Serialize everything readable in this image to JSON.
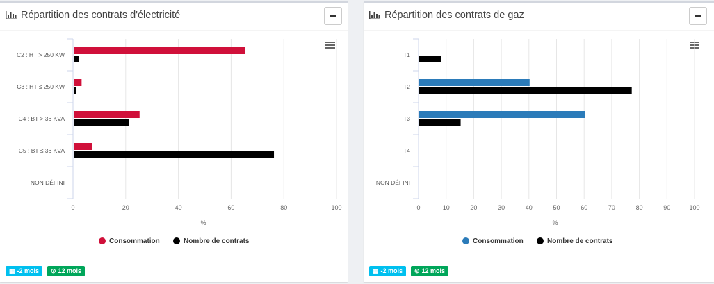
{
  "panels": [
    {
      "title": "Répartition des contrats d'électricité",
      "badge_period": "-2 mois",
      "badge_duration": "12 mois",
      "title_icon": "bar-chart-icon",
      "menu_icon": "hamburger-icon",
      "collapse_icon": "minus-icon"
    },
    {
      "title": "Répartition des contrats de gaz",
      "badge_period": "-2 mois",
      "badge_duration": "12 mois",
      "title_icon": "bar-chart-icon",
      "menu_icon": "hamburger-icon",
      "collapse_icon": "minus-icon"
    }
  ],
  "chart_data": [
    {
      "type": "bar",
      "orientation": "horizontal",
      "categories": [
        "C2 : HT > 250 KW",
        "C3 : HT ≤ 250 KW",
        "C4 : BT > 36 KVA",
        "C5 : BT ≤ 36 KVA",
        "NON DÉFINI"
      ],
      "series": [
        {
          "name": "Consommation",
          "color": "#d0103a",
          "values": [
            65,
            3,
            25,
            7,
            0
          ]
        },
        {
          "name": "Nombre de contrats",
          "color": "#000000",
          "values": [
            2,
            1,
            21,
            76,
            0
          ]
        }
      ],
      "xlabel": "%",
      "xlim": [
        0,
        100
      ],
      "xticks": [
        0,
        20,
        40,
        60,
        80,
        100
      ],
      "legend": "bottom-center",
      "grid": true
    },
    {
      "type": "bar",
      "orientation": "horizontal",
      "categories": [
        "T1",
        "T2",
        "T3",
        "T4",
        "NON DÉFINI"
      ],
      "series": [
        {
          "name": "Consommation",
          "color": "#2b7bb9",
          "values": [
            0,
            40,
            60,
            0,
            0
          ]
        },
        {
          "name": "Nombre de contrats",
          "color": "#000000",
          "values": [
            8,
            77,
            15,
            0,
            0
          ]
        }
      ],
      "xlabel": "%",
      "xlim": [
        0,
        100
      ],
      "xticks": [
        0,
        10,
        20,
        30,
        40,
        50,
        60,
        70,
        80,
        90,
        100
      ],
      "legend": "bottom-center",
      "grid": true
    }
  ]
}
